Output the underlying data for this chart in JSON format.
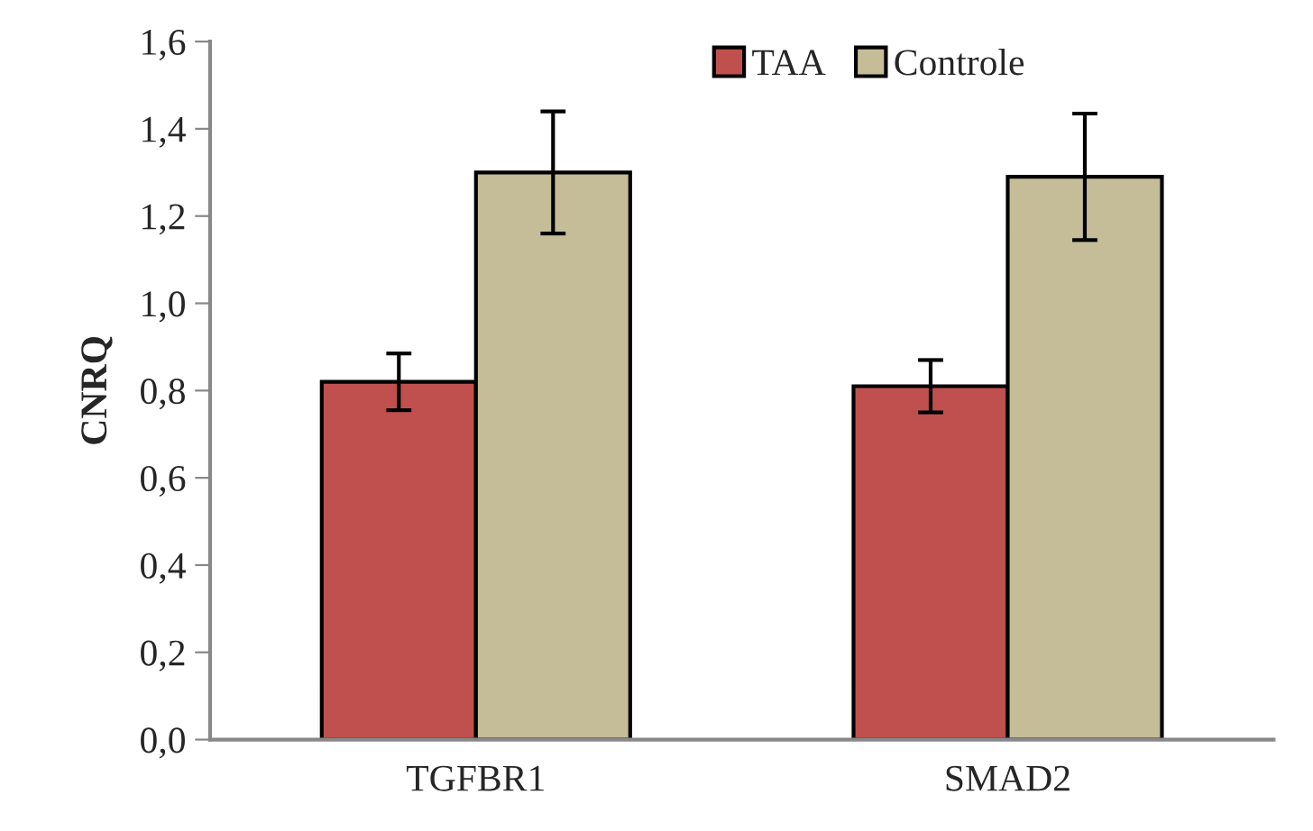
{
  "chart_data": {
    "type": "bar",
    "ylabel": "CNRQ",
    "categories": [
      "TGFBR1",
      "SMAD2"
    ],
    "series": [
      {
        "name": "TAA",
        "color": "#c0504d",
        "values": [
          0.82,
          0.81
        ],
        "errors": [
          0.065,
          0.06
        ]
      },
      {
        "name": "Controle",
        "color": "#c4bd97",
        "values": [
          1.3,
          1.29
        ],
        "errors": [
          0.14,
          0.145
        ]
      }
    ],
    "ylim": [
      0,
      1.6
    ],
    "yticks": [
      {
        "value": 0,
        "label": "0,0"
      },
      {
        "value": 0.2,
        "label": "0,2"
      },
      {
        "value": 0.4,
        "label": "0,4"
      },
      {
        "value": 0.6,
        "label": "0,6"
      },
      {
        "value": 0.8,
        "label": "0,8"
      },
      {
        "value": 1.0,
        "label": "1,0"
      },
      {
        "value": 1.2,
        "label": "1,2"
      },
      {
        "value": 1.4,
        "label": "1,4"
      },
      {
        "value": 1.6,
        "label": "1,6"
      }
    ],
    "grid": false,
    "legend": "top"
  }
}
